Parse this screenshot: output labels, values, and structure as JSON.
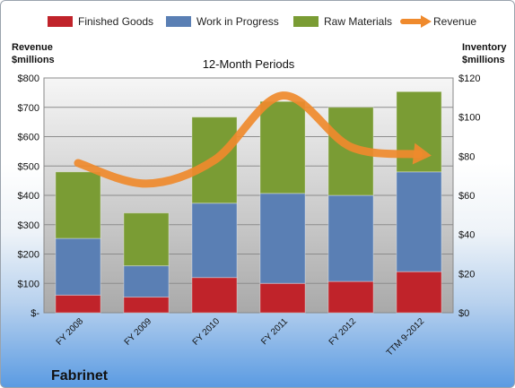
{
  "chart_data": {
    "type": "bar",
    "stacked": true,
    "title": "12-Month Periods",
    "company": "Fabrinet",
    "categories": [
      "FY 2008",
      "FY 2009",
      "FY 2010",
      "FY 2011",
      "FY 2012",
      "TTM 9-2012"
    ],
    "series": [
      {
        "name": "Finished Goods",
        "axis": "right",
        "color": "#c0232a",
        "values": [
          9,
          8,
          18,
          15,
          16,
          21
        ]
      },
      {
        "name": "Work in Progress",
        "axis": "right",
        "color": "#5a7fb4",
        "values": [
          29,
          16,
          38,
          46,
          44,
          51
        ]
      },
      {
        "name": "Raw Materials",
        "axis": "right",
        "color": "#7a9c34",
        "values": [
          34,
          27,
          44,
          47,
          45,
          41
        ]
      },
      {
        "name": "Revenue",
        "type": "line",
        "axis": "left",
        "color": "#ef8a2d",
        "values": [
          510,
          440,
          520,
          740,
          565,
          540
        ]
      }
    ],
    "y_left": {
      "label_line1": "Revenue",
      "label_line2": "$millions",
      "range": [
        0,
        800
      ],
      "ticks": [
        "$-",
        "$100",
        "$200",
        "$300",
        "$400",
        "$500",
        "$600",
        "$700",
        "$800"
      ]
    },
    "y_right": {
      "label_line1": "Inventory",
      "label_line2": "$millions",
      "range": [
        0,
        120
      ],
      "ticks": [
        "$0",
        "$20",
        "$40",
        "$60",
        "$80",
        "$100",
        "$120"
      ]
    },
    "grid": true,
    "legend_position": "top"
  }
}
